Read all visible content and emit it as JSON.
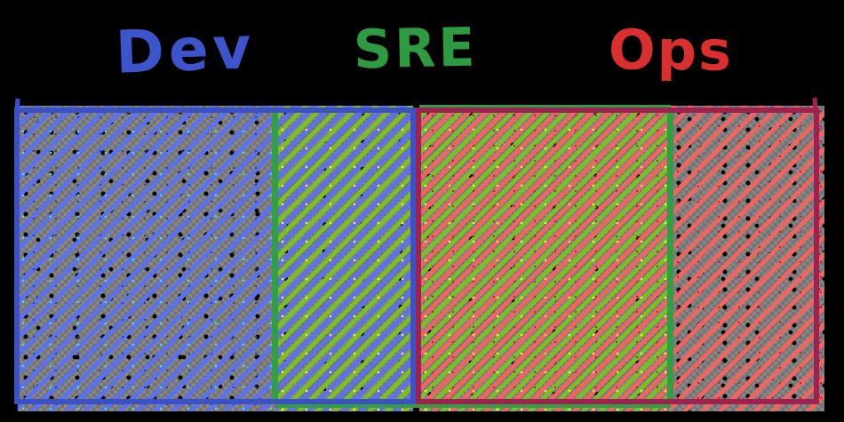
{
  "labels": {
    "dev": "Dev",
    "sre": "SRE",
    "ops": "Ops"
  },
  "colors": {
    "background": "#000000",
    "fill-gray": "#7e7e7e",
    "checker-light": "#868686",
    "checker-dark": "#737373",
    "dev-text": "#3c55cc",
    "sre-text": "#2e9b42",
    "ops-text": "#da2f2f",
    "dev-border": "#3c51c5",
    "ops-border": "#9e2150",
    "sre-border": "#2f9e44",
    "blue-hatch": "#5b71ee",
    "green-hatch": "#7abf24",
    "red-hatch": "#f0655f"
  }
}
